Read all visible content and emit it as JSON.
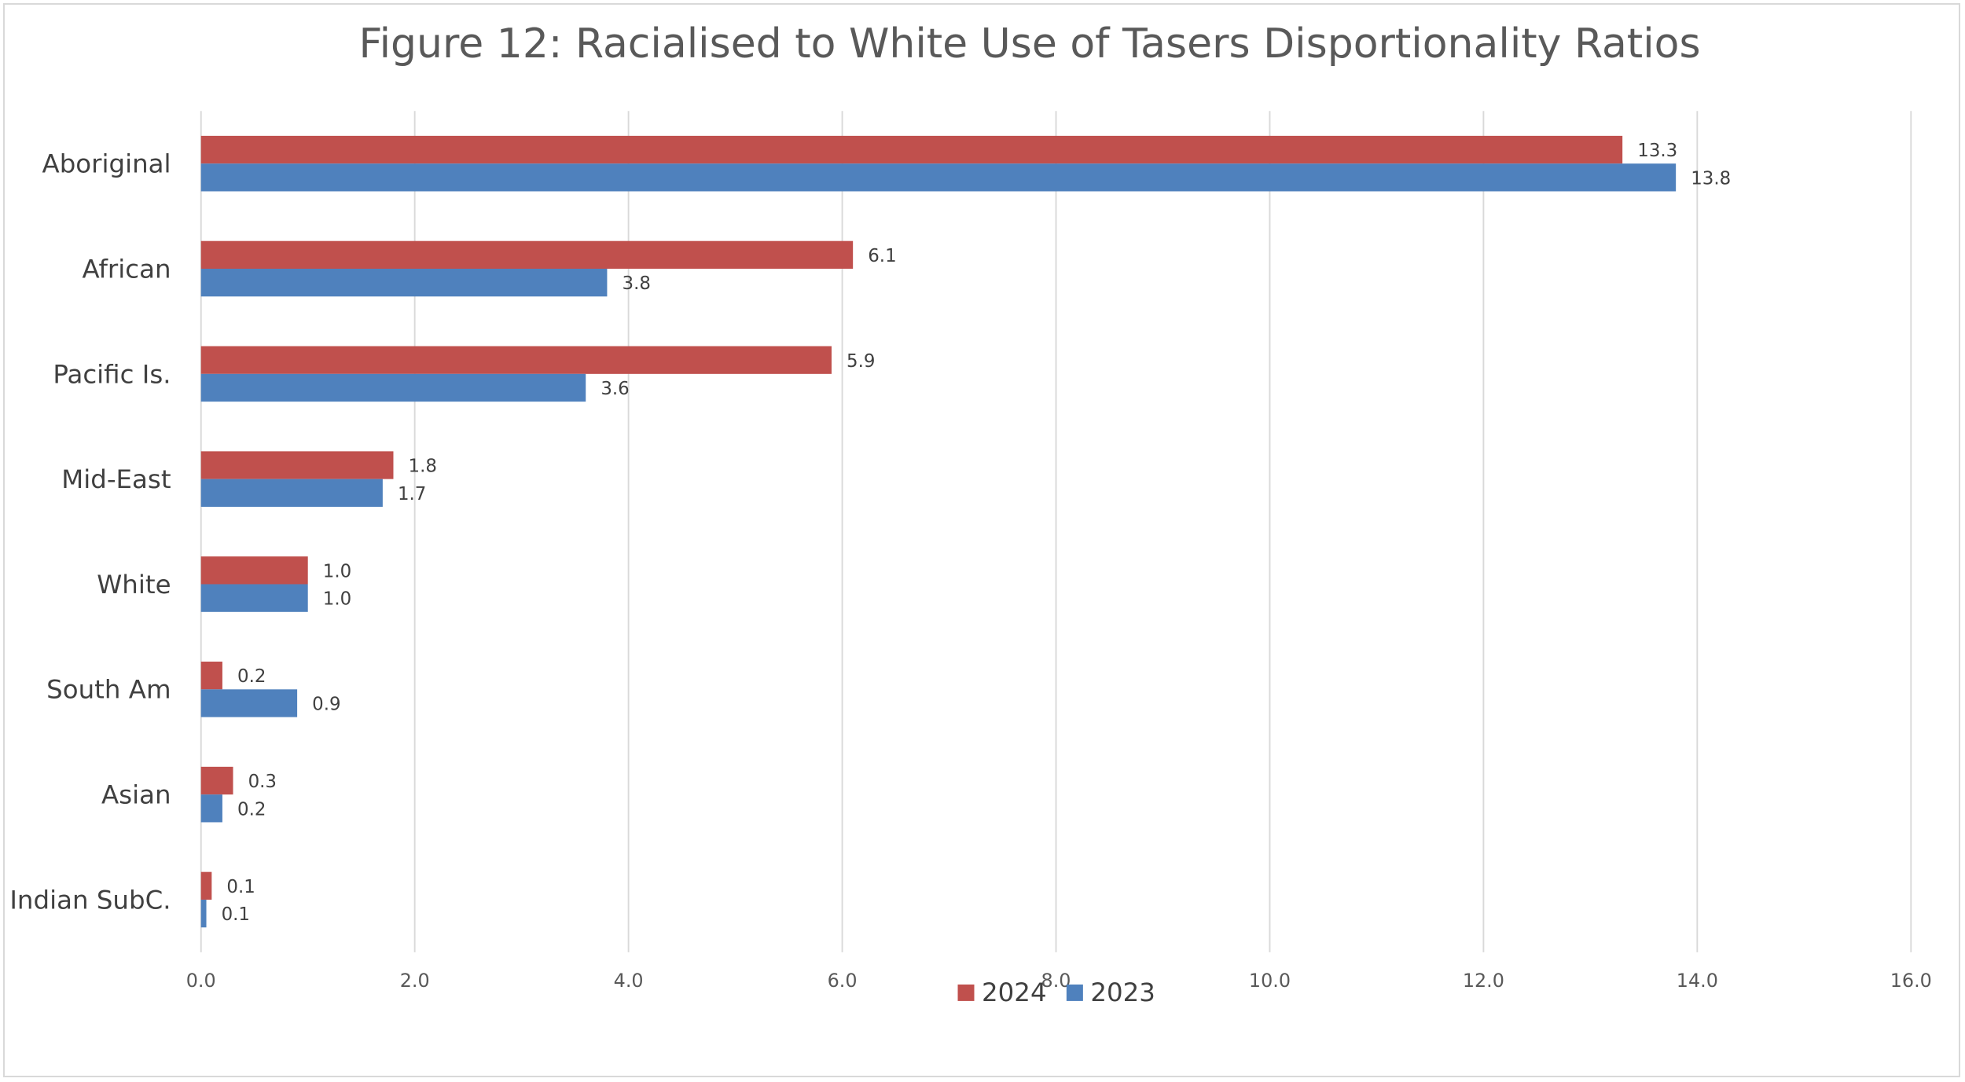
{
  "chart_data": {
    "type": "bar",
    "orientation": "horizontal",
    "title": "Figure 12: Racialised to White Use of Tasers Disportionality Ratios",
    "categories": [
      "Aboriginal",
      "African",
      "Pacific Is.",
      "Mid-East",
      "White",
      "South Am",
      "Asian",
      "Indian SubC."
    ],
    "series": [
      {
        "name": "2024",
        "color": "#c0504d",
        "values": [
          13.3,
          6.1,
          5.9,
          1.8,
          1.0,
          0.2,
          0.3,
          0.1
        ],
        "labels": [
          "13.3",
          "6.1",
          "5.9",
          "1.8",
          "1.0",
          "0.2",
          "0.3",
          "0.1"
        ]
      },
      {
        "name": "2023",
        "color": "#4f81bd",
        "values": [
          13.8,
          3.8,
          3.6,
          1.7,
          1.0,
          0.9,
          0.2,
          0.05
        ],
        "labels": [
          "13.8",
          "3.8",
          "3.6",
          "1.7",
          "1.0",
          "0.9",
          "0.2",
          "0.1"
        ]
      }
    ],
    "xlim": [
      0,
      16
    ],
    "xticks": [
      0,
      2,
      4,
      6,
      8,
      10,
      12,
      14,
      16
    ],
    "xtick_labels": [
      "0.0",
      "2.0",
      "4.0",
      "6.0",
      "8.0",
      "10.0",
      "12.0",
      "14.0",
      "16.0"
    ],
    "xlabel": "",
    "ylabel": "",
    "grid": true,
    "legend_position": "bottom",
    "gridline_color": "#d9d9d9"
  }
}
